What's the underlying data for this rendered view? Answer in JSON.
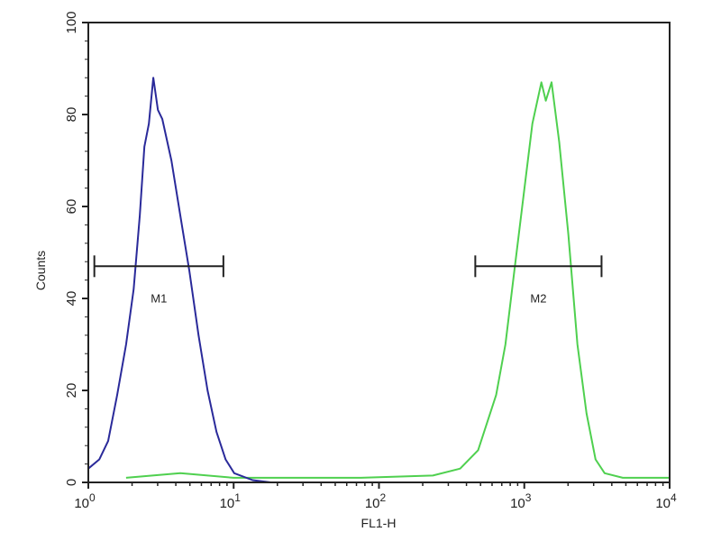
{
  "chart_data": {
    "type": "line",
    "title": "",
    "xlabel": "FL1-H",
    "ylabel": "Counts",
    "xscale": "log",
    "xlim": [
      1,
      10000
    ],
    "ylim": [
      0,
      100
    ],
    "grid": false,
    "x_ticks": [
      {
        "base": "10",
        "exp": "0",
        "value": 1
      },
      {
        "base": "10",
        "exp": "1",
        "value": 10
      },
      {
        "base": "10",
        "exp": "2",
        "value": 100
      },
      {
        "base": "10",
        "exp": "3",
        "value": 1000
      },
      {
        "base": "10",
        "exp": "4",
        "value": 10000
      }
    ],
    "y_ticks": [
      "0",
      "20",
      "40",
      "60",
      "80",
      "100"
    ],
    "colors": {
      "control": "#2a2a9a",
      "sample": "#4fd04f",
      "axis": "#222222"
    },
    "series": [
      {
        "color": "#2a2a9a",
        "points": [
          [
            1.0,
            3
          ],
          [
            1.19,
            5
          ],
          [
            1.37,
            9
          ],
          [
            1.58,
            19
          ],
          [
            1.82,
            30
          ],
          [
            2.05,
            42
          ],
          [
            2.26,
            58
          ],
          [
            2.43,
            73
          ],
          [
            2.61,
            78
          ],
          [
            2.8,
            88
          ],
          [
            3.01,
            81
          ],
          [
            3.23,
            79
          ],
          [
            3.73,
            70
          ],
          [
            4.3,
            58
          ],
          [
            4.96,
            46
          ],
          [
            5.73,
            32
          ],
          [
            6.61,
            20
          ],
          [
            7.62,
            11
          ],
          [
            8.8,
            5
          ],
          [
            10.1,
            2
          ],
          [
            13.5,
            0.5
          ],
          [
            18,
            0
          ],
          [
            10000,
            0
          ]
        ]
      },
      {
        "color": "#4fd04f",
        "points": [
          [
            1.82,
            1
          ],
          [
            4.3,
            2
          ],
          [
            10,
            1
          ],
          [
            18,
            1
          ],
          [
            75,
            1
          ],
          [
            235,
            1.5
          ],
          [
            362,
            3
          ],
          [
            481,
            7
          ],
          [
            640,
            19
          ],
          [
            741,
            30
          ],
          [
            854,
            46
          ],
          [
            985,
            62
          ],
          [
            1136,
            78
          ],
          [
            1310,
            87
          ],
          [
            1405,
            83
          ],
          [
            1540,
            87
          ],
          [
            1740,
            74
          ],
          [
            2010,
            54
          ],
          [
            2320,
            30
          ],
          [
            2680,
            15
          ],
          [
            3090,
            5
          ],
          [
            3570,
            2
          ],
          [
            4760,
            1
          ],
          [
            10000,
            1
          ]
        ]
      }
    ],
    "markers": [
      {
        "label": "M1",
        "x_range": [
          1.1,
          8.5
        ],
        "y": 47
      },
      {
        "label": "M2",
        "x_range": [
          460,
          3400
        ],
        "y": 47
      }
    ]
  }
}
